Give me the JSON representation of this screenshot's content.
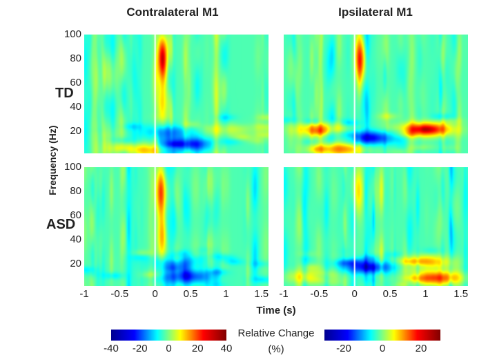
{
  "chart_data": [
    {
      "type": "heatmap",
      "title": "Contralateral M1",
      "row_label": "TD",
      "xlabel": "Time (s)",
      "ylabel": "Frequency (Hz)",
      "xlim": [
        -1,
        1.6
      ],
      "ylim": [
        2,
        100
      ],
      "clim": [
        -40,
        40
      ],
      "colormap": "jet",
      "event_line_time": 0,
      "features": [
        {
          "time": 0.1,
          "freq": 80,
          "value": 40
        },
        {
          "time": 0.1,
          "freq": 45,
          "value": 20
        },
        {
          "time": 0.2,
          "freq": 20,
          "value": -15
        },
        {
          "time": 0.45,
          "freq": 10,
          "value": -25
        },
        {
          "time": -0.2,
          "freq": 5,
          "value": 20
        },
        {
          "time": 1.0,
          "freq": 22,
          "value": 10
        }
      ]
    },
    {
      "type": "heatmap",
      "title": "Ipsilateral M1",
      "row_label": "TD",
      "xlabel": "Time (s)",
      "ylabel": "Frequency (Hz)",
      "xlim": [
        -1,
        1.6
      ],
      "ylim": [
        2,
        100
      ],
      "clim": [
        -30,
        30
      ],
      "colormap": "jet",
      "event_line_time": 0,
      "features": [
        {
          "time": 0.07,
          "freq": 80,
          "value": 25
        },
        {
          "time": -0.5,
          "freq": 22,
          "value": 15
        },
        {
          "time": 0.2,
          "freq": 15,
          "value": -20
        },
        {
          "time": 1.0,
          "freq": 22,
          "value": 28
        },
        {
          "time": -0.2,
          "freq": 6,
          "value": 18
        }
      ]
    },
    {
      "type": "heatmap",
      "title": "Contralateral M1",
      "row_label": "ASD",
      "xlabel": "Time (s)",
      "ylabel": "Frequency (Hz)",
      "xlim": [
        -1,
        1.6
      ],
      "ylim": [
        2,
        100
      ],
      "clim": [
        -40,
        40
      ],
      "colormap": "jet",
      "event_line_time": 0,
      "features": [
        {
          "time": 0.08,
          "freq": 80,
          "value": 30
        },
        {
          "time": 0.1,
          "freq": 42,
          "value": 22
        },
        {
          "time": 0.3,
          "freq": 22,
          "value": -15
        },
        {
          "time": 0.45,
          "freq": 10,
          "value": -22
        }
      ]
    },
    {
      "type": "heatmap",
      "title": "Ipsilateral M1",
      "row_label": "ASD",
      "xlabel": "Time (s)",
      "ylabel": "Frequency (Hz)",
      "xlim": [
        -1,
        1.6
      ],
      "ylim": [
        2,
        100
      ],
      "clim": [
        -30,
        30
      ],
      "colormap": "jet",
      "event_line_time": 0,
      "features": [
        {
          "time": 0.05,
          "freq": 80,
          "value": 12
        },
        {
          "time": 0.2,
          "freq": 18,
          "value": -20
        },
        {
          "time": 1.0,
          "freq": 22,
          "value": 16
        },
        {
          "time": 1.15,
          "freq": 9,
          "value": 22
        },
        {
          "time": -0.6,
          "freq": 10,
          "value": 12
        }
      ]
    }
  ],
  "titles": {
    "contra": "Contralateral M1",
    "ipsi": "Ipsilateral M1"
  },
  "rows": {
    "td": "TD",
    "asd": "ASD"
  },
  "axes": {
    "ylabel": "Frequency (Hz)",
    "xlabel": "Time (s)",
    "yticks": [
      "100",
      "80",
      "60",
      "40",
      "20"
    ],
    "xticks": [
      "-1",
      "-0.5",
      "0",
      "0.5",
      "1",
      "1.5"
    ]
  },
  "colorbar": {
    "label": "Relative Change",
    "unit": "(%)",
    "left_ticks": [
      "-40",
      "-20",
      "0",
      "20",
      "40"
    ],
    "right_ticks": [
      "-20",
      "0",
      "20"
    ],
    "left_range": [
      -40,
      40
    ],
    "right_range": [
      -30,
      30
    ]
  }
}
